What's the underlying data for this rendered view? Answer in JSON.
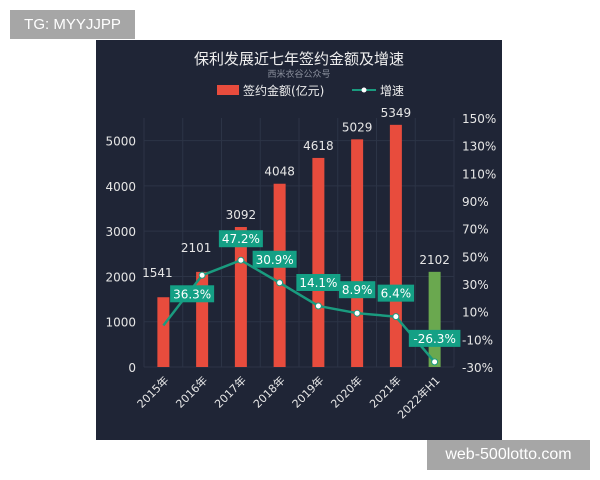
{
  "watermarks": {
    "top_left": "TG: MYYJJPP",
    "bottom_right": "web-500lotto.com"
  },
  "colors": {
    "background": "#1f2536",
    "bar": "#e84c3d",
    "bar_highlight": "#6aa84f",
    "line": "#1a9b7f",
    "label_box": "#14a085",
    "text": "#e6e6e6",
    "grid": "#2c3446"
  },
  "chart_data": {
    "type": "bar",
    "title": "保利发展近七年签约金额及增速",
    "subtitle": "西米衣谷公众号",
    "legend": {
      "position": "top",
      "entries": [
        "签约金额(亿元)",
        "增速"
      ]
    },
    "categories": [
      "2015年",
      "2016年",
      "2017年",
      "2018年",
      "2019年",
      "2020年",
      "2021年",
      "2022年H1"
    ],
    "series": [
      {
        "name": "签约金额(亿元)",
        "type": "bar",
        "axis": "left",
        "values": [
          1541,
          2101,
          3092,
          4048,
          4618,
          5029,
          5349,
          2102
        ],
        "value_labels": [
          "1541",
          "2101",
          "3092",
          "4048",
          "4618",
          "5029",
          "5349",
          "2102"
        ]
      },
      {
        "name": "增速",
        "type": "line",
        "axis": "right",
        "values": [
          0,
          36.3,
          47.2,
          30.9,
          14.1,
          8.9,
          6.4,
          -26.3
        ],
        "value_labels": [
          "",
          "36.3%",
          "47.2%",
          "30.9%",
          "14.1%",
          "8.9%",
          "6.4%",
          "-26.3%"
        ]
      }
    ],
    "y_left": {
      "ylim": [
        0,
        5500
      ],
      "ticks": [
        "0",
        "1000",
        "2000",
        "3000",
        "4000",
        "5000"
      ]
    },
    "y_right": {
      "ylim": [
        -30,
        150
      ],
      "ticks": [
        "-30%",
        "-10%",
        "10%",
        "30%",
        "50%",
        "70%",
        "90%",
        "110%",
        "130%",
        "150%"
      ]
    },
    "grid": true
  }
}
